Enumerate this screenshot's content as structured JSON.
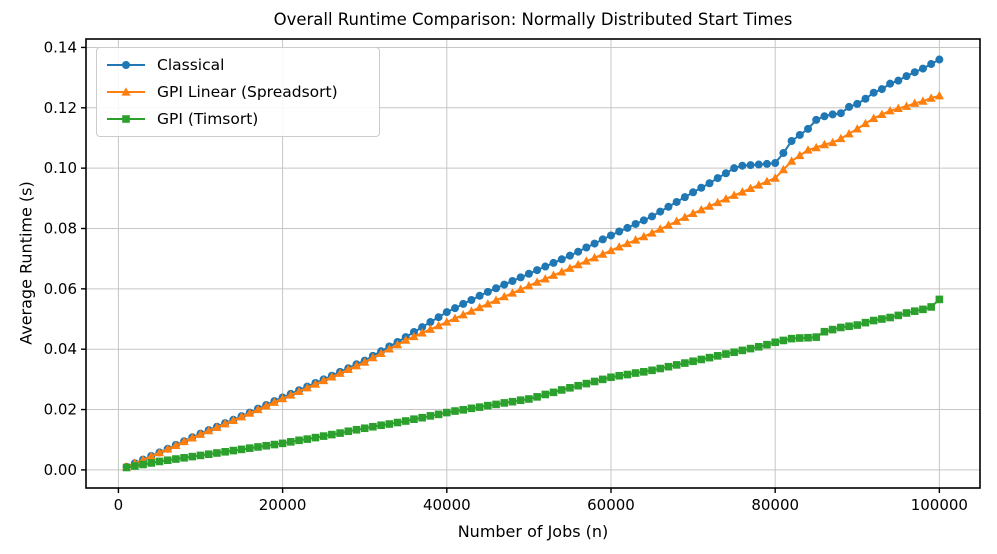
{
  "chart_data": {
    "type": "line",
    "title": "Overall Runtime Comparison: Normally Distributed Start Times",
    "xlabel": "Number of Jobs (n)",
    "ylabel": "Average Runtime (s)",
    "grid": true,
    "legend_position": "upper left",
    "xlim": [
      -3950,
      104950
    ],
    "ylim": [
      -0.006,
      0.1428
    ],
    "x_ticks": [
      0,
      20000,
      40000,
      60000,
      80000,
      100000
    ],
    "x_tick_labels": [
      "0",
      "20000",
      "40000",
      "60000",
      "80000",
      "100000"
    ],
    "y_ticks": [
      0.0,
      0.02,
      0.04,
      0.06,
      0.08,
      0.1,
      0.12,
      0.14
    ],
    "y_tick_labels": [
      "0.00",
      "0.02",
      "0.04",
      "0.06",
      "0.08",
      "0.10",
      "0.12",
      "0.14"
    ],
    "grid_color": "#c6c6c6",
    "spine_color": "#000000",
    "x": [
      1000,
      2000,
      3000,
      4000,
      5000,
      6000,
      7000,
      8000,
      9000,
      10000,
      11000,
      12000,
      13000,
      14000,
      15000,
      16000,
      17000,
      18000,
      19000,
      20000,
      21000,
      22000,
      23000,
      24000,
      25000,
      26000,
      27000,
      28000,
      29000,
      30000,
      31000,
      32000,
      33000,
      34000,
      35000,
      36000,
      37000,
      38000,
      39000,
      40000,
      41000,
      42000,
      43000,
      44000,
      45000,
      46000,
      47000,
      48000,
      49000,
      50000,
      51000,
      52000,
      53000,
      54000,
      55000,
      56000,
      57000,
      58000,
      59000,
      60000,
      61000,
      62000,
      63000,
      64000,
      65000,
      66000,
      67000,
      68000,
      69000,
      70000,
      71000,
      72000,
      73000,
      74000,
      75000,
      76000,
      77000,
      78000,
      79000,
      80000,
      81000,
      82000,
      83000,
      84000,
      85000,
      86000,
      87000,
      88000,
      89000,
      90000,
      91000,
      92000,
      93000,
      94000,
      95000,
      96000,
      97000,
      98000,
      99000,
      100000
    ],
    "series": [
      {
        "name": "Classical",
        "color": "#1f77b4",
        "marker": "circle",
        "values": [
          0.001,
          0.0022,
          0.0034,
          0.0046,
          0.0058,
          0.007,
          0.0083,
          0.0095,
          0.0108,
          0.012,
          0.0132,
          0.0143,
          0.0155,
          0.0166,
          0.0178,
          0.019,
          0.0203,
          0.0215,
          0.0228,
          0.024,
          0.0252,
          0.0264,
          0.0276,
          0.0288,
          0.03,
          0.0312,
          0.0325,
          0.0337,
          0.035,
          0.0362,
          0.0378,
          0.0393,
          0.0409,
          0.0424,
          0.044,
          0.0457,
          0.0473,
          0.049,
          0.0506,
          0.0523,
          0.0536,
          0.055,
          0.0563,
          0.0577,
          0.059,
          0.0602,
          0.0614,
          0.0626,
          0.0638,
          0.065,
          0.0662,
          0.0674,
          0.0686,
          0.0698,
          0.071,
          0.0723,
          0.0737,
          0.075,
          0.0764,
          0.0777,
          0.079,
          0.0802,
          0.0815,
          0.0827,
          0.084,
          0.0856,
          0.0872,
          0.0888,
          0.0904,
          0.092,
          0.0935,
          0.095,
          0.0967,
          0.0983,
          0.1,
          0.1008,
          0.101,
          0.1012,
          0.1014,
          0.1017,
          0.105,
          0.109,
          0.111,
          0.113,
          0.116,
          0.1172,
          0.1178,
          0.1182,
          0.1203,
          0.1213,
          0.123,
          0.125,
          0.1262,
          0.128,
          0.129,
          0.1305,
          0.1318,
          0.133,
          0.1345,
          0.136
        ]
      },
      {
        "name": "GPI Linear (Spreadsort)",
        "color": "#ff7f0e",
        "marker": "triangle",
        "values": [
          0.001,
          0.0022,
          0.0033,
          0.0045,
          0.0057,
          0.0069,
          0.0081,
          0.0094,
          0.0106,
          0.0118,
          0.013,
          0.0141,
          0.0153,
          0.0164,
          0.0176,
          0.0188,
          0.02,
          0.0212,
          0.0224,
          0.0236,
          0.0248,
          0.026,
          0.0272,
          0.0284,
          0.0296,
          0.0308,
          0.032,
          0.0333,
          0.0345,
          0.0357,
          0.0372,
          0.0386,
          0.0401,
          0.0415,
          0.043,
          0.0442,
          0.0454,
          0.0466,
          0.0478,
          0.049,
          0.0502,
          0.0514,
          0.0526,
          0.0538,
          0.055,
          0.0562,
          0.0574,
          0.0586,
          0.0598,
          0.061,
          0.0622,
          0.0633,
          0.0645,
          0.0656,
          0.0668,
          0.068,
          0.0692,
          0.0703,
          0.0715,
          0.0727,
          0.0739,
          0.075,
          0.0762,
          0.0773,
          0.0785,
          0.0798,
          0.0811,
          0.0824,
          0.0837,
          0.085,
          0.0862,
          0.0874,
          0.0886,
          0.0898,
          0.091,
          0.0921,
          0.0933,
          0.0944,
          0.0956,
          0.0967,
          0.0995,
          0.1023,
          0.1042,
          0.106,
          0.1068,
          0.1078,
          0.1085,
          0.1098,
          0.1114,
          0.113,
          0.1148,
          0.1165,
          0.1178,
          0.119,
          0.1198,
          0.1205,
          0.1215,
          0.1222,
          0.1232,
          0.124
        ]
      },
      {
        "name": "GPI (Timsort)",
        "color": "#2ca02c",
        "marker": "square",
        "values": [
          0.0008,
          0.0013,
          0.0018,
          0.0023,
          0.0028,
          0.0032,
          0.0036,
          0.004,
          0.0044,
          0.0048,
          0.0052,
          0.0056,
          0.006,
          0.0064,
          0.0068,
          0.0072,
          0.0076,
          0.008,
          0.0084,
          0.0088,
          0.0093,
          0.0098,
          0.0102,
          0.0107,
          0.0112,
          0.0117,
          0.0122,
          0.0128,
          0.0133,
          0.0138,
          0.0143,
          0.0148,
          0.0152,
          0.0157,
          0.0162,
          0.0168,
          0.0173,
          0.0179,
          0.0184,
          0.019,
          0.0195,
          0.0199,
          0.0204,
          0.0208,
          0.0213,
          0.0217,
          0.0222,
          0.0226,
          0.0231,
          0.0235,
          0.0242,
          0.025,
          0.0257,
          0.0265,
          0.0272,
          0.0279,
          0.0286,
          0.0293,
          0.03,
          0.0307,
          0.0312,
          0.0316,
          0.0321,
          0.0325,
          0.033,
          0.0336,
          0.0342,
          0.0348,
          0.0354,
          0.036,
          0.0366,
          0.0372,
          0.0378,
          0.0384,
          0.039,
          0.0396,
          0.0402,
          0.0408,
          0.0415,
          0.0423,
          0.0429,
          0.0435,
          0.0437,
          0.0438,
          0.044,
          0.0458,
          0.0465,
          0.0472,
          0.0476,
          0.048,
          0.0488,
          0.0495,
          0.05,
          0.0505,
          0.0512,
          0.052,
          0.0526,
          0.0532,
          0.054,
          0.0565
        ]
      }
    ]
  }
}
